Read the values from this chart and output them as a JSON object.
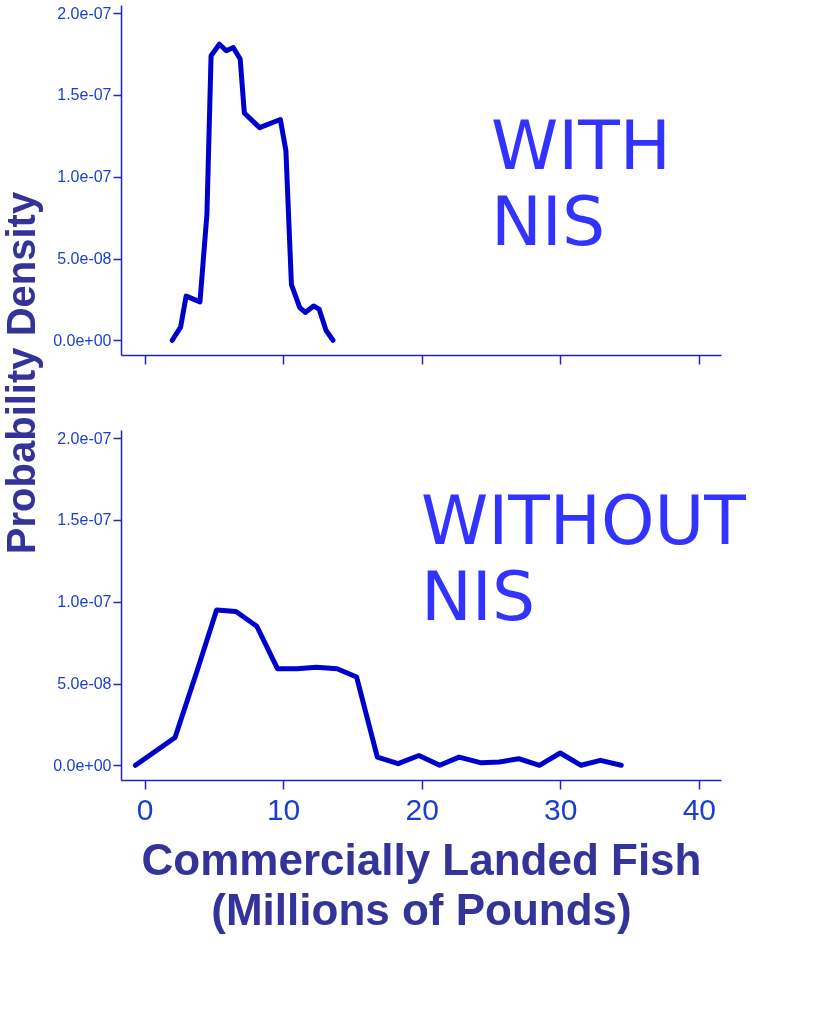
{
  "chart_data": [
    {
      "type": "line",
      "ylabel": "Probability Density",
      "tick_labels": "y",
      "grid": false,
      "x": [
        2.0,
        2.6,
        3.0,
        4.0,
        4.5,
        4.8,
        5.4,
        5.9,
        6.4,
        6.9,
        7.2,
        8.3,
        9.8,
        10.2,
        10.6,
        11.2,
        11.6,
        12.2,
        12.6,
        13.1,
        13.6
      ],
      "series": [
        {
          "color": "#0000cc",
          "values": [
            0,
            8e-09,
            2.7e-08,
            2.35e-08,
            7.7e-08,
            1.74e-07,
            1.81e-07,
            1.77e-07,
            1.79e-07,
            1.72e-07,
            1.39e-07,
            1.3e-07,
            1.35e-07,
            1.16e-07,
            3.4e-08,
            2e-08,
            1.7e-08,
            2.1e-08,
            1.9e-08,
            6e-09,
            0
          ]
        }
      ],
      "xlim": [
        -1.7,
        41.6
      ],
      "xticks": [
        0,
        10,
        20,
        30,
        40
      ],
      "ylim": [
        -9e-09,
        2.05e-07
      ],
      "yticks": [
        {
          "value": 0,
          "label": "0.0e+00"
        },
        {
          "value": 5e-08,
          "label": "5.0e-08"
        },
        {
          "value": 1e-07,
          "label": "1.0e-07"
        },
        {
          "value": 1.5e-07,
          "label": "1.5e-07"
        },
        {
          "value": 2e-07,
          "label": "2.0e-07"
        }
      ],
      "annotations": [
        "WITH\nNIS"
      ]
    },
    {
      "type": "line",
      "xlabel": "Commercially Landed Fish\n(Millions of Pounds)",
      "grid": false,
      "x": [
        -0.66,
        2.2,
        3.8,
        5.2,
        6.6,
        8.1,
        9.6,
        11.0,
        12.4,
        13.9,
        15.3,
        16.8,
        18.3,
        19.8,
        21.3,
        22.7,
        24.3,
        25.6,
        27.0,
        28.5,
        30.0,
        31.5,
        32.9,
        34.4
      ],
      "series": [
        {
          "color": "#0000cc",
          "values": [
            0,
            1.7e-08,
            5.8e-08,
            9.5e-08,
            9.4e-08,
            8.5e-08,
            5.9e-08,
            5.9e-08,
            6e-08,
            5.9e-08,
            5.4e-08,
            5e-09,
            1e-09,
            6e-09,
            0,
            5e-09,
            1.5e-09,
            2e-09,
            4e-09,
            0,
            7.5e-09,
            0,
            3e-09,
            0
          ]
        }
      ],
      "xlim": [
        -1.7,
        41.6
      ],
      "xticks": [
        0,
        10,
        20,
        30,
        40
      ],
      "ylim": [
        -9e-09,
        2.05e-07
      ],
      "yticks": [
        {
          "value": 0,
          "label": "0.0e+00"
        },
        {
          "value": 5e-08,
          "label": "5.0e-08"
        },
        {
          "value": 1e-07,
          "label": "1.0e-07"
        },
        {
          "value": 1.5e-07,
          "label": "1.5e-07"
        },
        {
          "value": 2e-07,
          "label": "2.0e-07"
        }
      ],
      "annotations": [
        "WITHOUT\nNIS"
      ]
    }
  ]
}
